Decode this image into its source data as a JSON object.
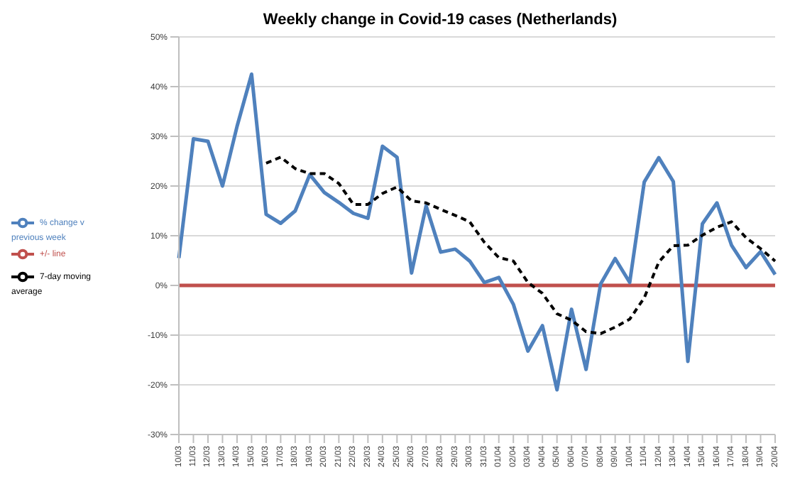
{
  "chart_data": {
    "type": "line",
    "title": "Weekly change in Covid-19 cases (Netherlands)",
    "categories": [
      "10/03",
      "11/03",
      "12/03",
      "13/03",
      "14/03",
      "15/03",
      "16/03",
      "17/03",
      "18/03",
      "19/03",
      "20/03",
      "21/03",
      "22/03",
      "23/03",
      "24/03",
      "25/03",
      "26/03",
      "27/03",
      "28/03",
      "29/03",
      "30/03",
      "31/03",
      "01/04",
      "02/04",
      "03/04",
      "04/04",
      "05/04",
      "06/04",
      "07/04",
      "08/04",
      "09/04",
      "10/04",
      "11/04",
      "12/04",
      "13/04",
      "14/04",
      "15/04",
      "16/04",
      "17/04",
      "18/04",
      "19/04",
      "20/04"
    ],
    "series": [
      {
        "name": "+/- line",
        "color": "#c0504d",
        "line_style": "solid",
        "values": [
          0,
          0,
          0,
          0,
          0,
          0,
          0,
          0,
          0,
          0,
          0,
          0,
          0,
          0,
          0,
          0,
          0,
          0,
          0,
          0,
          0,
          0,
          0,
          0,
          0,
          0,
          0,
          0,
          0,
          0,
          0,
          0,
          0,
          0,
          0,
          0,
          0,
          0,
          0,
          0,
          0,
          0
        ]
      },
      {
        "name": "% change v previous week",
        "color": "#4f81bd",
        "line_style": "solid",
        "values": [
          5.5,
          29.5,
          29,
          20,
          32,
          42.5,
          14.3,
          12.5,
          15,
          22.3,
          18.7,
          16.7,
          14.5,
          13.5,
          28,
          25.8,
          2.5,
          16,
          6.7,
          7.3,
          4.9,
          0.6,
          1.6,
          -3.8,
          -13.2,
          -8.1,
          -21,
          -4.8,
          -16.9,
          0.3,
          5.4,
          0.6,
          20.8,
          25.7,
          20.9,
          -15.3,
          12.4,
          16.6,
          8.1,
          3.6,
          6.8,
          2.2
        ]
      },
      {
        "name": "7-day moving average",
        "color": "#000000",
        "line_style": "dashed",
        "values": [
          null,
          null,
          null,
          null,
          null,
          null,
          24.6,
          25.8,
          23.5,
          22.5,
          22.5,
          20.5,
          16.3,
          16.3,
          18.5,
          19.8,
          17,
          16.6,
          15.3,
          14.1,
          12.8,
          8.7,
          5.6,
          4.9,
          0.6,
          -1.6,
          -5.7,
          -7,
          -9.3,
          -9.7,
          -8.4,
          -6.8,
          -2.5,
          4.7,
          8,
          8.1,
          10.1,
          11.7,
          12.8,
          9.6,
          7.4,
          4.9
        ]
      }
    ],
    "ylim": [
      -30,
      50
    ],
    "yticks": [
      {
        "value": -30,
        "label": "-30%"
      },
      {
        "value": -20,
        "label": "-20%"
      },
      {
        "value": -10,
        "label": "-10%"
      },
      {
        "value": 0,
        "label": "0%"
      },
      {
        "value": 10,
        "label": "10%"
      },
      {
        "value": 20,
        "label": "20%"
      },
      {
        "value": 30,
        "label": "30%"
      },
      {
        "value": 40,
        "label": "40%"
      },
      {
        "value": 50,
        "label": "50%"
      }
    ],
    "grid": "y",
    "legend": "left",
    "marker": "none"
  }
}
